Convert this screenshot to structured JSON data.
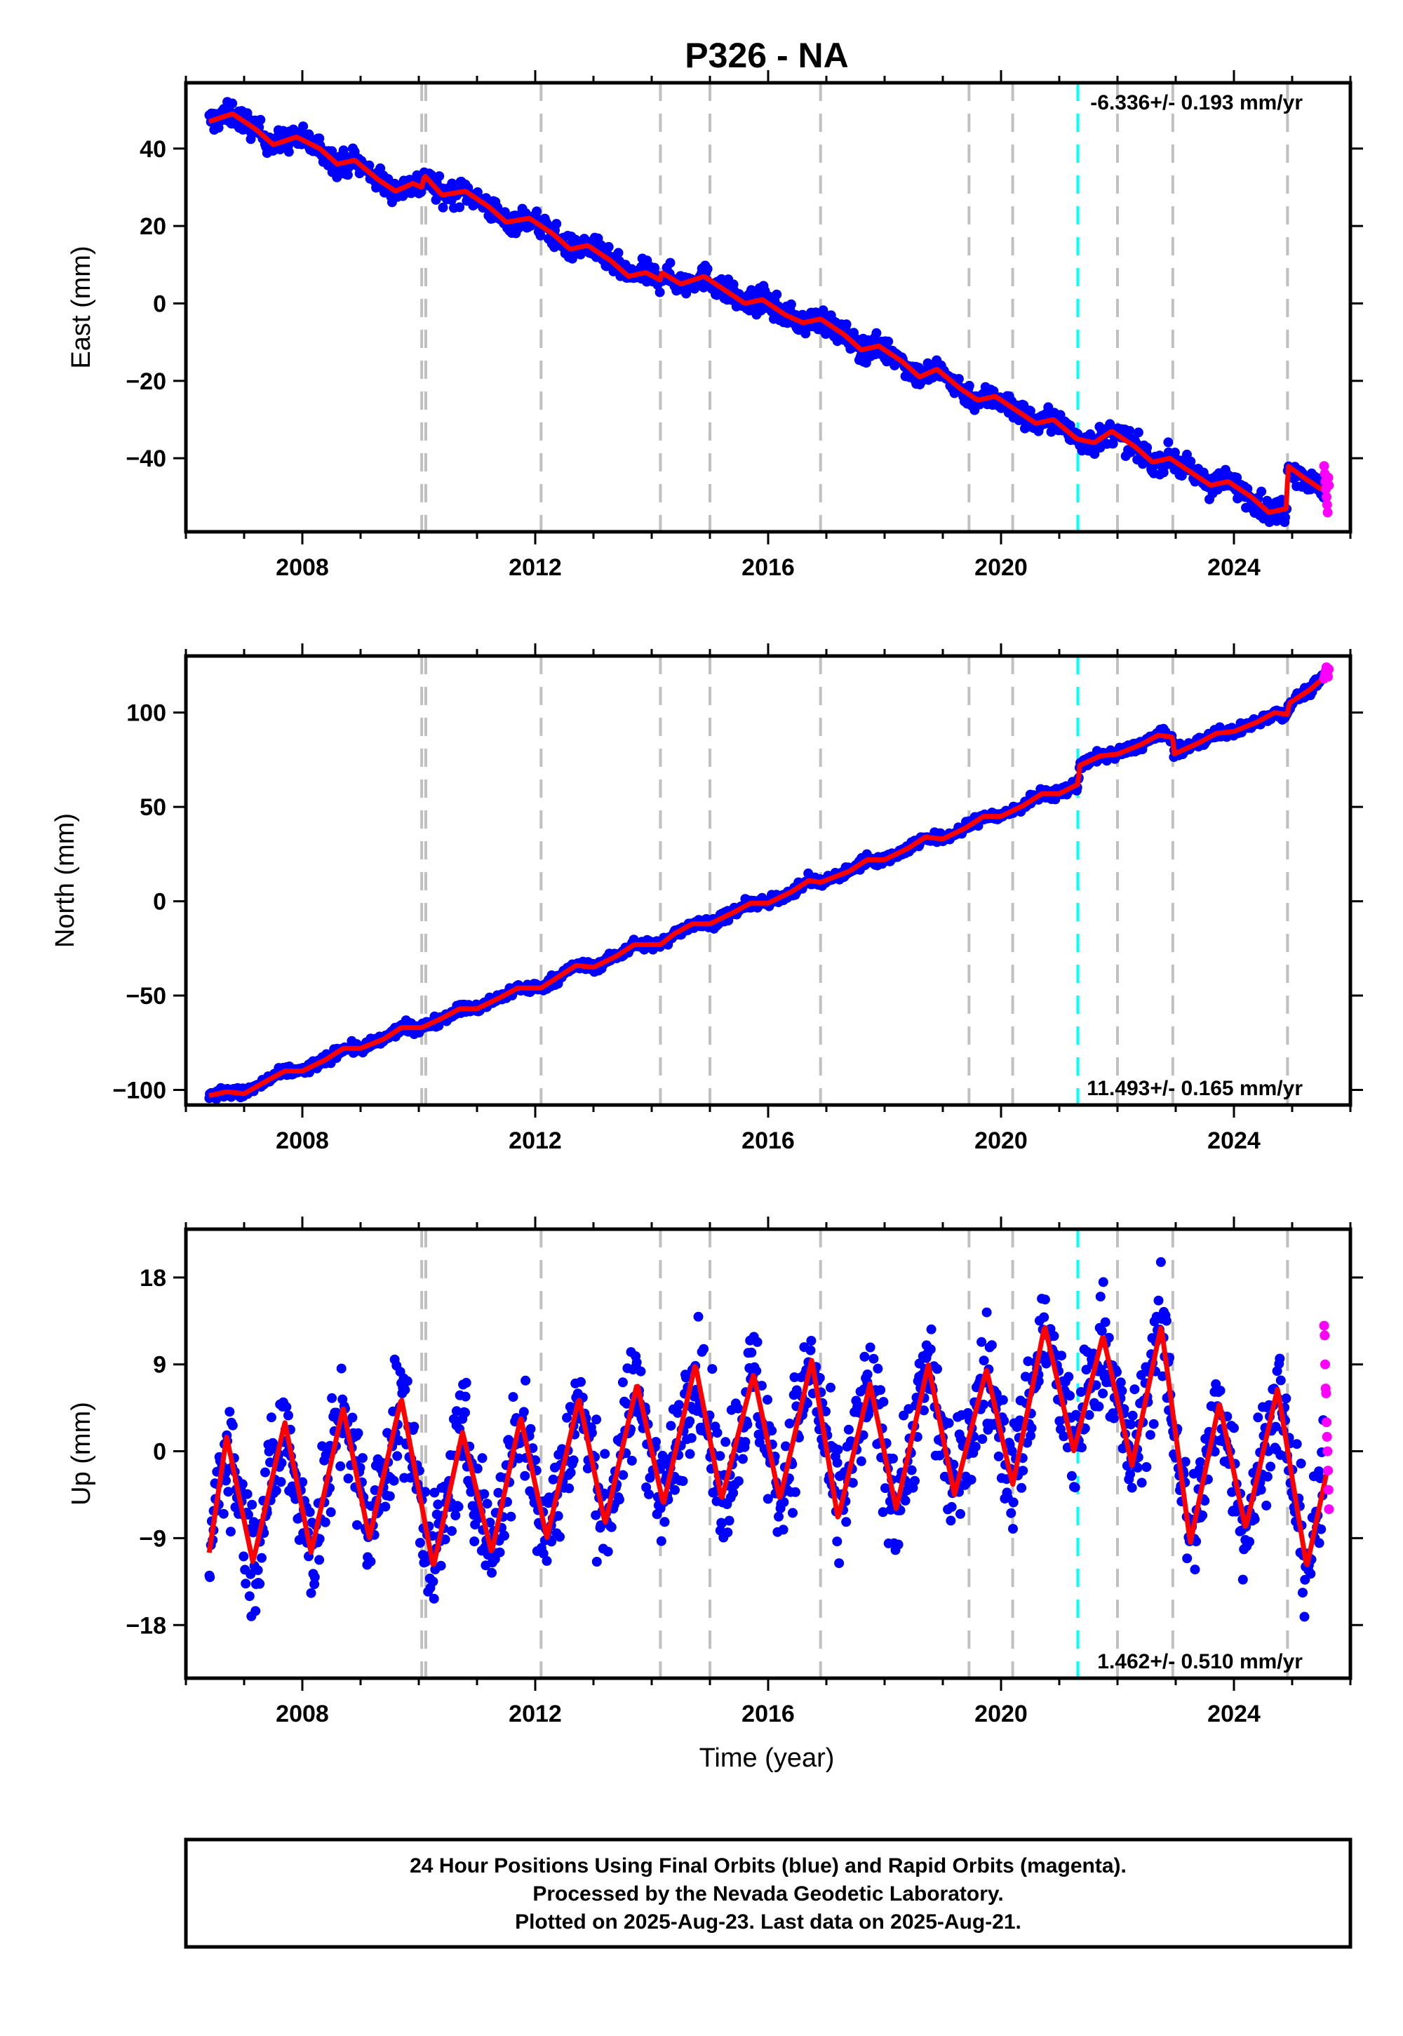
{
  "title": "P326 - NA",
  "colors": {
    "final_orbits": "#0000ff",
    "rapid_orbits": "#ff00ff",
    "model": "#ff0000",
    "equipment_change": "#c0c0c0",
    "earthquake": "#00ffff"
  },
  "xlabel": "Time (year)",
  "footer": {
    "line1": "24 Hour Positions Using Final Orbits (blue) and Rapid Orbits (magenta).",
    "line2": "Processed by the Nevada Geodetic Laboratory.",
    "line3": "Plotted on 2025-Aug-23. Last data on 2025-Aug-21."
  },
  "chart_data": [
    {
      "type": "scatter",
      "component": "east",
      "ylabel": "East (mm)",
      "rate_text": "-6.336+/- 0.193 mm/yr",
      "rate_position": "top-right",
      "xlim": [
        2006.0,
        2026.0
      ],
      "ylim": [
        -59,
        57
      ],
      "xticks": [
        2008,
        2012,
        2016,
        2020,
        2024
      ],
      "xtick_labels": [
        "2008",
        "2012",
        "2016",
        "2020",
        "2024"
      ],
      "yticks": [
        -40,
        -20,
        0,
        20,
        40
      ],
      "ytick_labels": [
        "−40",
        "−20",
        "0",
        "20",
        "40"
      ],
      "gray_dashed_lines": [
        2010.05,
        2010.12,
        2012.1,
        2014.15,
        2015.0,
        2016.9,
        2019.45,
        2020.2,
        2022.0,
        2022.95,
        2024.92
      ],
      "cyan_dashed_lines": [
        2021.32
      ],
      "model_points": [
        [
          2006.4,
          47
        ],
        [
          2006.8,
          49
        ],
        [
          2007.2,
          45
        ],
        [
          2007.5,
          41
        ],
        [
          2007.9,
          43
        ],
        [
          2008.3,
          40
        ],
        [
          2008.6,
          36
        ],
        [
          2008.9,
          37
        ],
        [
          2009.3,
          32
        ],
        [
          2009.6,
          29
        ],
        [
          2009.9,
          31
        ],
        [
          2010.05,
          30
        ],
        [
          2010.1,
          33
        ],
        [
          2010.4,
          28
        ],
        [
          2010.8,
          29
        ],
        [
          2011.2,
          25
        ],
        [
          2011.5,
          21
        ],
        [
          2011.9,
          22
        ],
        [
          2012.3,
          18
        ],
        [
          2012.6,
          14
        ],
        [
          2012.9,
          15
        ],
        [
          2013.3,
          11
        ],
        [
          2013.6,
          7
        ],
        [
          2013.9,
          8
        ],
        [
          2014.15,
          6
        ],
        [
          2014.17,
          8
        ],
        [
          2014.5,
          5
        ],
        [
          2014.9,
          7
        ],
        [
          2015.3,
          3
        ],
        [
          2015.6,
          0
        ],
        [
          2015.9,
          1
        ],
        [
          2016.3,
          -3
        ],
        [
          2016.6,
          -5
        ],
        [
          2016.9,
          -4
        ],
        [
          2017.3,
          -8
        ],
        [
          2017.6,
          -12
        ],
        [
          2017.9,
          -11
        ],
        [
          2018.3,
          -15
        ],
        [
          2018.6,
          -19
        ],
        [
          2018.9,
          -17
        ],
        [
          2019.3,
          -22
        ],
        [
          2019.6,
          -25
        ],
        [
          2019.9,
          -24
        ],
        [
          2020.3,
          -28
        ],
        [
          2020.6,
          -31
        ],
        [
          2020.9,
          -30
        ],
        [
          2021.3,
          -35
        ],
        [
          2021.6,
          -36
        ],
        [
          2021.9,
          -33
        ],
        [
          2022.3,
          -37
        ],
        [
          2022.6,
          -41
        ],
        [
          2022.9,
          -40
        ],
        [
          2023.3,
          -44
        ],
        [
          2023.6,
          -47
        ],
        [
          2023.9,
          -46
        ],
        [
          2024.3,
          -50
        ],
        [
          2024.6,
          -54
        ],
        [
          2024.9,
          -53
        ],
        [
          2024.93,
          -42
        ],
        [
          2025.2,
          -45
        ],
        [
          2025.5,
          -48
        ],
        [
          2025.6,
          -47
        ]
      ],
      "scatter_spread": 2.2,
      "rapid_range": [
        2025.55,
        2025.64
      ],
      "rapid_values": [
        -42,
        -44,
        -46,
        -48,
        -50,
        -52,
        -54,
        -45,
        -47
      ]
    },
    {
      "type": "scatter",
      "component": "north",
      "ylabel": "North (mm)",
      "rate_text": "11.493+/- 0.165 mm/yr",
      "rate_position": "bottom-right",
      "xlim": [
        2006.0,
        2026.0
      ],
      "ylim": [
        -108,
        130
      ],
      "xticks": [
        2008,
        2012,
        2016,
        2020,
        2024
      ],
      "xtick_labels": [
        "2008",
        "2012",
        "2016",
        "2020",
        "2024"
      ],
      "yticks": [
        -100,
        -50,
        0,
        50,
        100
      ],
      "ytick_labels": [
        "−100",
        "−50",
        "0",
        "50",
        "100"
      ],
      "gray_dashed_lines": [
        2010.05,
        2010.12,
        2012.1,
        2014.15,
        2015.0,
        2016.9,
        2019.45,
        2020.2,
        2022.0,
        2022.95,
        2024.92
      ],
      "cyan_dashed_lines": [
        2021.32
      ],
      "model_points": [
        [
          2006.4,
          -103
        ],
        [
          2006.7,
          -101
        ],
        [
          2007.0,
          -102
        ],
        [
          2007.4,
          -95
        ],
        [
          2007.7,
          -90
        ],
        [
          2008.0,
          -90
        ],
        [
          2008.4,
          -84
        ],
        [
          2008.7,
          -78
        ],
        [
          2009.0,
          -78
        ],
        [
          2009.4,
          -73
        ],
        [
          2009.7,
          -67
        ],
        [
          2010.05,
          -67
        ],
        [
          2010.4,
          -62
        ],
        [
          2010.7,
          -57
        ],
        [
          2011.0,
          -57
        ],
        [
          2011.4,
          -51
        ],
        [
          2011.7,
          -46
        ],
        [
          2012.1,
          -46
        ],
        [
          2012.4,
          -40
        ],
        [
          2012.7,
          -34
        ],
        [
          2013.0,
          -35
        ],
        [
          2013.4,
          -29
        ],
        [
          2013.7,
          -23
        ],
        [
          2014.15,
          -23
        ],
        [
          2014.4,
          -17
        ],
        [
          2014.7,
          -12
        ],
        [
          2015.0,
          -12
        ],
        [
          2015.4,
          -6
        ],
        [
          2015.7,
          -1
        ],
        [
          2016.0,
          -1
        ],
        [
          2016.4,
          5
        ],
        [
          2016.7,
          11
        ],
        [
          2016.9,
          10
        ],
        [
          2017.4,
          16
        ],
        [
          2017.7,
          22
        ],
        [
          2018.0,
          22
        ],
        [
          2018.4,
          28
        ],
        [
          2018.7,
          34
        ],
        [
          2019.0,
          33
        ],
        [
          2019.4,
          39
        ],
        [
          2019.7,
          45
        ],
        [
          2020.0,
          45
        ],
        [
          2020.4,
          51
        ],
        [
          2020.7,
          57
        ],
        [
          2021.0,
          57
        ],
        [
          2021.32,
          62
        ],
        [
          2021.35,
          72
        ],
        [
          2021.7,
          77
        ],
        [
          2022.0,
          78
        ],
        [
          2022.4,
          83
        ],
        [
          2022.7,
          88
        ],
        [
          2022.95,
          87
        ],
        [
          2022.97,
          78
        ],
        [
          2023.4,
          84
        ],
        [
          2023.7,
          89
        ],
        [
          2024.0,
          90
        ],
        [
          2024.4,
          95
        ],
        [
          2024.7,
          100
        ],
        [
          2024.92,
          99
        ],
        [
          2024.95,
          105
        ],
        [
          2025.3,
          112
        ],
        [
          2025.6,
          120
        ]
      ],
      "scatter_spread": 2.0,
      "rapid_range": [
        2025.55,
        2025.64
      ],
      "rapid_values": [
        118,
        120,
        122,
        124,
        121,
        119,
        123
      ]
    },
    {
      "type": "scatter",
      "component": "up",
      "ylabel": "Up (mm)",
      "rate_text": "1.462+/- 0.510 mm/yr",
      "rate_position": "bottom-right",
      "xlim": [
        2006.0,
        2026.0
      ],
      "ylim": [
        -23.5,
        23
      ],
      "xticks": [
        2008,
        2012,
        2016,
        2020,
        2024
      ],
      "xtick_labels": [
        "2008",
        "2012",
        "2016",
        "2020",
        "2024"
      ],
      "yticks": [
        -18,
        -9,
        0,
        9,
        18
      ],
      "ytick_labels": [
        "−18",
        "−9",
        "0",
        "9",
        "18"
      ],
      "gray_dashed_lines": [
        2010.05,
        2010.12,
        2012.1,
        2014.15,
        2015.0,
        2016.9,
        2019.45,
        2020.2,
        2022.0,
        2022.95,
        2024.92
      ],
      "cyan_dashed_lines": [
        2021.32
      ],
      "model_points": [
        [
          2006.4,
          -10.5
        ],
        [
          2006.7,
          1.5
        ],
        [
          2007.15,
          -11.5
        ],
        [
          2007.7,
          3.0
        ],
        [
          2008.15,
          -10.5
        ],
        [
          2008.7,
          4.5
        ],
        [
          2009.15,
          -9.0
        ],
        [
          2009.7,
          5.5
        ],
        [
          2010.25,
          -12.0
        ],
        [
          2010.75,
          2.0
        ],
        [
          2011.25,
          -10.5
        ],
        [
          2011.75,
          3.5
        ],
        [
          2012.2,
          -9.0
        ],
        [
          2012.75,
          5.5
        ],
        [
          2013.2,
          -7.5
        ],
        [
          2013.75,
          7.0
        ],
        [
          2014.2,
          -5.5
        ],
        [
          2014.75,
          9.0
        ],
        [
          2015.2,
          -5.0
        ],
        [
          2015.75,
          8.0
        ],
        [
          2016.2,
          -5.0
        ],
        [
          2016.75,
          9.5
        ],
        [
          2017.2,
          -7.0
        ],
        [
          2017.75,
          7.0
        ],
        [
          2018.2,
          -6.0
        ],
        [
          2018.75,
          9.0
        ],
        [
          2019.2,
          -4.5
        ],
        [
          2019.75,
          8.5
        ],
        [
          2020.2,
          -3.5
        ],
        [
          2020.75,
          13.0
        ],
        [
          2021.25,
          0.0
        ],
        [
          2021.75,
          12.0
        ],
        [
          2022.25,
          -1.5
        ],
        [
          2022.75,
          13.0
        ],
        [
          2023.25,
          -9.5
        ],
        [
          2023.75,
          5.0
        ],
        [
          2024.2,
          -8.0
        ],
        [
          2024.75,
          6.5
        ],
        [
          2025.25,
          -12.0
        ],
        [
          2025.6,
          -2.0
        ]
      ],
      "scatter_spread": 4.2,
      "rapid_range": [
        2025.55,
        2025.64
      ],
      "rapid_values": [
        13,
        12,
        9,
        6.5,
        6,
        3,
        1.5,
        0,
        -2,
        -4,
        -6
      ]
    }
  ]
}
